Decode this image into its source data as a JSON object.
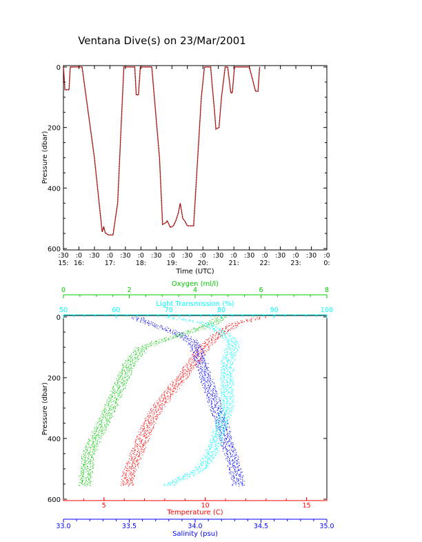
{
  "page": {
    "title": "Ventana Dive(s) on 23/Mar/2001"
  },
  "colors": {
    "axis": "#000000",
    "temperature": "#ff0000",
    "salinity": "#0000ff",
    "oxygen": "#00cc00",
    "light": "#00ffff"
  },
  "chart_data": [
    {
      "type": "line",
      "ylabel": "Pressure (dbar)",
      "xlabel": "Time (UTC)",
      "ylim": [
        600,
        0
      ],
      "y_ticks": [
        "0",
        "200",
        "400",
        "600"
      ],
      "x_ticks": [
        {
          "top": ":30",
          "bottom": "15:"
        },
        {
          "top": ":0",
          "bottom": "16:"
        },
        {
          "top": ":30",
          "bottom": ""
        },
        {
          "top": ":0",
          "bottom": "17:"
        },
        {
          "top": ":30",
          "bottom": ""
        },
        {
          "top": ":0",
          "bottom": "18:"
        },
        {
          "top": ":30",
          "bottom": ""
        },
        {
          "top": ":0",
          "bottom": "19:"
        },
        {
          "top": ":30",
          "bottom": ""
        },
        {
          "top": ":0",
          "bottom": "20:"
        },
        {
          "top": ":30",
          "bottom": ""
        },
        {
          "top": ":0",
          "bottom": "21:"
        },
        {
          "top": ":30",
          "bottom": ""
        },
        {
          "top": ":0",
          "bottom": "22:"
        },
        {
          "top": ":30",
          "bottom": ""
        },
        {
          "top": ":0",
          "bottom": "23:"
        },
        {
          "top": ":30",
          "bottom": ""
        },
        {
          "top": ":0",
          "bottom": "0:"
        }
      ],
      "series": [
        {
          "color": "#cc0000",
          "points": [
            [
              15.5,
              0
            ],
            [
              15.55,
              75
            ],
            [
              15.68,
              75
            ],
            [
              15.72,
              0
            ],
            [
              16.0,
              0
            ],
            [
              16.1,
              0
            ],
            [
              16.5,
              300
            ],
            [
              16.75,
              545
            ],
            [
              16.8,
              528
            ],
            [
              16.85,
              548
            ],
            [
              16.95,
              555
            ],
            [
              17.1,
              555
            ],
            [
              17.25,
              450
            ],
            [
              17.45,
              0
            ],
            [
              17.8,
              0
            ],
            [
              17.85,
              92
            ],
            [
              17.92,
              92
            ],
            [
              17.98,
              0
            ],
            [
              18.3,
              0
            ],
            [
              18.35,
              0
            ],
            [
              18.6,
              300
            ],
            [
              18.7,
              520
            ],
            [
              18.8,
              515
            ],
            [
              18.85,
              508
            ],
            [
              18.95,
              530
            ],
            [
              19.05,
              525
            ],
            [
              19.12,
              510
            ],
            [
              19.2,
              485
            ],
            [
              19.27,
              450
            ],
            [
              19.35,
              500
            ],
            [
              19.42,
              510
            ],
            [
              19.5,
              525
            ],
            [
              19.7,
              525
            ],
            [
              19.95,
              100
            ],
            [
              20.05,
              0
            ],
            [
              20.25,
              0
            ],
            [
              20.3,
              60
            ],
            [
              20.37,
              140
            ],
            [
              20.42,
              205
            ],
            [
              20.52,
              200
            ],
            [
              20.6,
              100
            ],
            [
              20.72,
              0
            ],
            [
              20.8,
              0
            ],
            [
              20.9,
              85
            ],
            [
              20.95,
              85
            ],
            [
              21.02,
              0
            ],
            [
              21.5,
              0
            ],
            [
              21.7,
              80
            ],
            [
              21.78,
              80
            ],
            [
              21.83,
              0
            ]
          ]
        }
      ]
    },
    {
      "type": "scatter",
      "ylabel": "Pressure (dbar)",
      "ylim": [
        600,
        0
      ],
      "y_ticks": [
        "0",
        "200",
        "400",
        "600"
      ],
      "axes": [
        {
          "label": "Oxygen (ml/l)",
          "position": "top",
          "range": [
            0,
            8
          ],
          "ticks": [
            "0",
            "2",
            "4",
            "6",
            "8"
          ],
          "color": "#00cc00"
        },
        {
          "label": "Light Transmission (%)",
          "position": "top",
          "range": [
            50,
            100
          ],
          "ticks": [
            "50",
            "60",
            "70",
            "80",
            "90",
            "100"
          ],
          "color": "#00ffff"
        },
        {
          "label": "Temperature (C)",
          "position": "bottom",
          "range": [
            3,
            16
          ],
          "ticks": [
            "5",
            "10",
            "15"
          ],
          "color": "#ff0000"
        },
        {
          "label": "Salinity (psu)",
          "position": "bottom",
          "range": [
            33.0,
            35.0
          ],
          "ticks": [
            "33.0",
            "33.5",
            "34.0",
            "34.5",
            "35.0"
          ],
          "color": "#0000ff"
        }
      ],
      "series": [
        {
          "name": "Temperature",
          "axis": "Temperature (C)",
          "color": "#ff0000",
          "profile": [
            [
              0,
              12.8
            ],
            [
              20,
              11.5
            ],
            [
              50,
              10.8
            ],
            [
              80,
              10.2
            ],
            [
              100,
              9.9
            ],
            [
              150,
              9.4
            ],
            [
              200,
              8.8
            ],
            [
              250,
              8.2
            ],
            [
              300,
              7.6
            ],
            [
              350,
              7.2
            ],
            [
              400,
              6.9
            ],
            [
              450,
              6.6
            ],
            [
              500,
              6.3
            ],
            [
              550,
              6.1
            ]
          ]
        },
        {
          "name": "Salinity",
          "axis": "Salinity (psu)",
          "color": "#0000ff",
          "profile": [
            [
              0,
              33.55
            ],
            [
              20,
              33.65
            ],
            [
              50,
              33.85
            ],
            [
              80,
              33.98
            ],
            [
              100,
              34.0
            ],
            [
              150,
              34.05
            ],
            [
              200,
              34.08
            ],
            [
              250,
              34.12
            ],
            [
              300,
              34.16
            ],
            [
              350,
              34.2
            ],
            [
              400,
              34.23
            ],
            [
              450,
              34.27
            ],
            [
              500,
              34.3
            ],
            [
              550,
              34.33
            ]
          ]
        },
        {
          "name": "Oxygen",
          "axis": "Oxygen (ml/l)",
          "color": "#00cc00",
          "profile": [
            [
              0,
              4.8
            ],
            [
              20,
              4.5
            ],
            [
              50,
              3.8
            ],
            [
              80,
              2.9
            ],
            [
              100,
              2.4
            ],
            [
              150,
              2.0
            ],
            [
              200,
              1.8
            ],
            [
              250,
              1.6
            ],
            [
              300,
              1.4
            ],
            [
              350,
              1.2
            ],
            [
              400,
              0.95
            ],
            [
              450,
              0.75
            ],
            [
              500,
              0.7
            ],
            [
              550,
              0.65
            ]
          ]
        },
        {
          "name": "Light Transmission",
          "axis": "Light Transmission (%)",
          "color": "#00ffff",
          "profile": [
            [
              0,
              70
            ],
            [
              20,
              77
            ],
            [
              50,
              80
            ],
            [
              80,
              82
            ],
            [
              100,
              82
            ],
            [
              150,
              81
            ],
            [
              200,
              81
            ],
            [
              250,
              81
            ],
            [
              300,
              81
            ],
            [
              350,
              80
            ],
            [
              400,
              79
            ],
            [
              450,
              78
            ],
            [
              500,
              76
            ],
            [
              550,
              70
            ]
          ]
        }
      ]
    }
  ]
}
